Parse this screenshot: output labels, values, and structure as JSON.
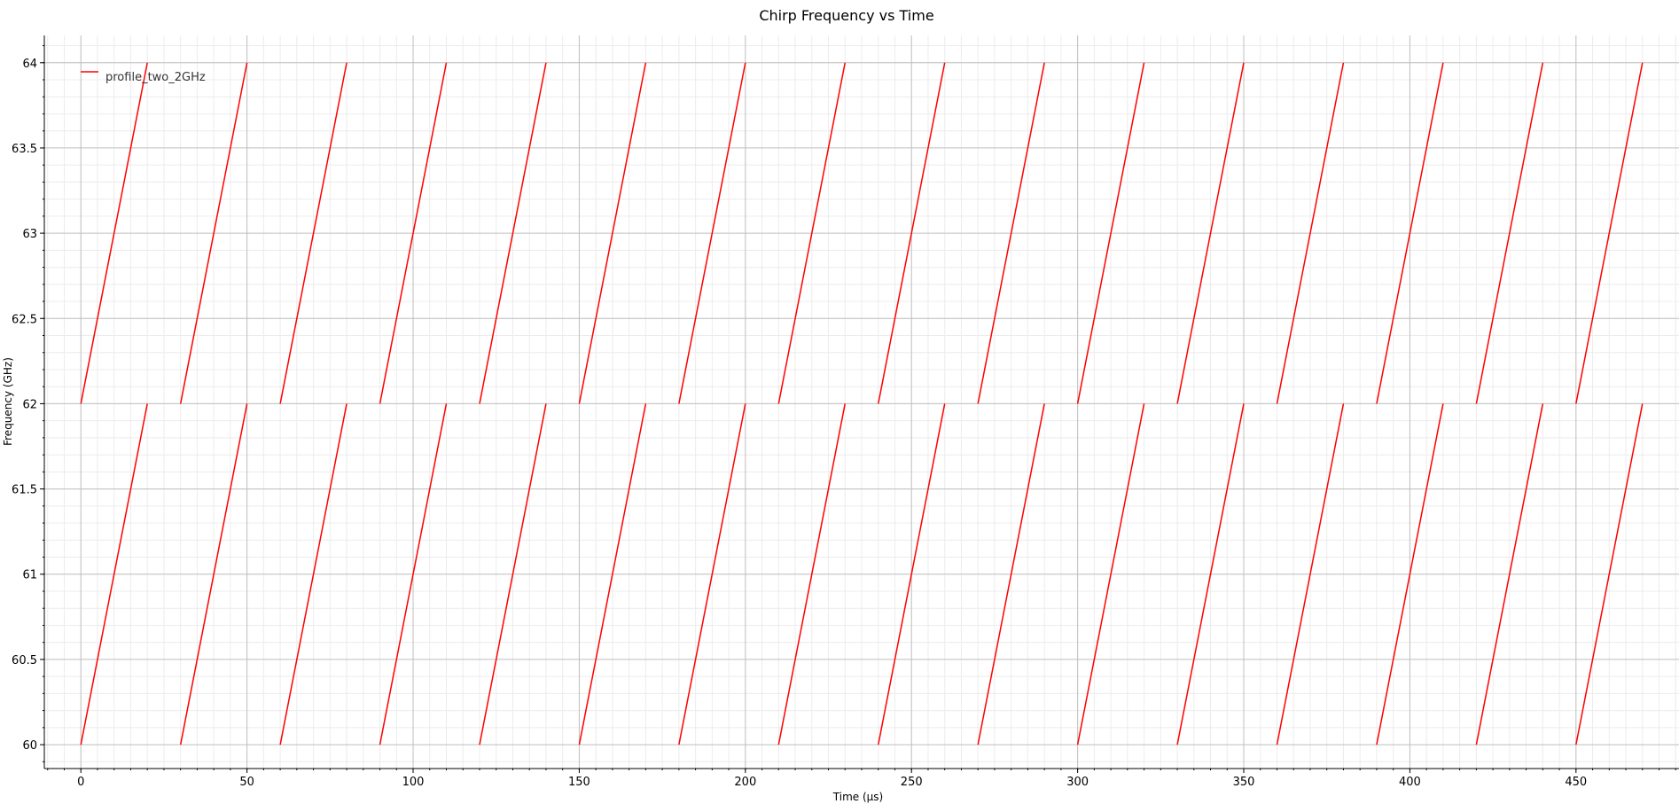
{
  "chart_data": {
    "type": "line",
    "title": "Chirp Frequency vs Time",
    "xlabel": "Time (µs)",
    "ylabel": "Frequency (GHz)",
    "xlim": [
      -11,
      481
    ],
    "ylim": [
      59.86,
      64.16
    ],
    "xticks": [
      0,
      50,
      100,
      150,
      200,
      250,
      300,
      350,
      400,
      450
    ],
    "xtick_labels": [
      "0",
      "50",
      "100",
      "150",
      "200",
      "250",
      "300",
      "350",
      "400",
      "450"
    ],
    "yticks": [
      60,
      60.5,
      61,
      61.5,
      62,
      62.5,
      63,
      63.5,
      64
    ],
    "ytick_labels": [
      "60",
      "60.5",
      "61",
      "61.5",
      "62",
      "62.5",
      "63",
      "63.5",
      "64"
    ],
    "x_minor_step": 5,
    "y_minor_step": 0.1,
    "grid": true,
    "legend_position": "top-left",
    "series": [
      {
        "name": "profile_two_2GHz",
        "color": "#ff0000",
        "segments": [
          {
            "x": [
              0,
              20
            ],
            "y": [
              60,
              62
            ]
          },
          {
            "x": [
              0,
              20
            ],
            "y": [
              62,
              64
            ]
          },
          {
            "x": [
              30,
              50
            ],
            "y": [
              60,
              62
            ]
          },
          {
            "x": [
              30,
              50
            ],
            "y": [
              62,
              64
            ]
          },
          {
            "x": [
              60,
              80
            ],
            "y": [
              60,
              62
            ]
          },
          {
            "x": [
              60,
              80
            ],
            "y": [
              62,
              64
            ]
          },
          {
            "x": [
              90,
              110
            ],
            "y": [
              60,
              62
            ]
          },
          {
            "x": [
              90,
              110
            ],
            "y": [
              62,
              64
            ]
          },
          {
            "x": [
              120,
              140
            ],
            "y": [
              60,
              62
            ]
          },
          {
            "x": [
              120,
              140
            ],
            "y": [
              62,
              64
            ]
          },
          {
            "x": [
              150,
              170
            ],
            "y": [
              60,
              62
            ]
          },
          {
            "x": [
              150,
              170
            ],
            "y": [
              62,
              64
            ]
          },
          {
            "x": [
              180,
              200
            ],
            "y": [
              60,
              62
            ]
          },
          {
            "x": [
              180,
              200
            ],
            "y": [
              62,
              64
            ]
          },
          {
            "x": [
              210,
              230
            ],
            "y": [
              60,
              62
            ]
          },
          {
            "x": [
              210,
              230
            ],
            "y": [
              62,
              64
            ]
          },
          {
            "x": [
              240,
              260
            ],
            "y": [
              60,
              62
            ]
          },
          {
            "x": [
              240,
              260
            ],
            "y": [
              62,
              64
            ]
          },
          {
            "x": [
              270,
              290
            ],
            "y": [
              60,
              62
            ]
          },
          {
            "x": [
              270,
              290
            ],
            "y": [
              62,
              64
            ]
          },
          {
            "x": [
              300,
              320
            ],
            "y": [
              60,
              62
            ]
          },
          {
            "x": [
              300,
              320
            ],
            "y": [
              62,
              64
            ]
          },
          {
            "x": [
              330,
              350
            ],
            "y": [
              60,
              62
            ]
          },
          {
            "x": [
              330,
              350
            ],
            "y": [
              62,
              64
            ]
          },
          {
            "x": [
              360,
              380
            ],
            "y": [
              60,
              62
            ]
          },
          {
            "x": [
              360,
              380
            ],
            "y": [
              62,
              64
            ]
          },
          {
            "x": [
              390,
              410
            ],
            "y": [
              60,
              62
            ]
          },
          {
            "x": [
              390,
              410
            ],
            "y": [
              62,
              64
            ]
          },
          {
            "x": [
              420,
              440
            ],
            "y": [
              60,
              62
            ]
          },
          {
            "x": [
              420,
              440
            ],
            "y": [
              62,
              64
            ]
          },
          {
            "x": [
              450,
              470
            ],
            "y": [
              60,
              62
            ]
          },
          {
            "x": [
              450,
              470
            ],
            "y": [
              62,
              64
            ]
          }
        ]
      }
    ]
  }
}
